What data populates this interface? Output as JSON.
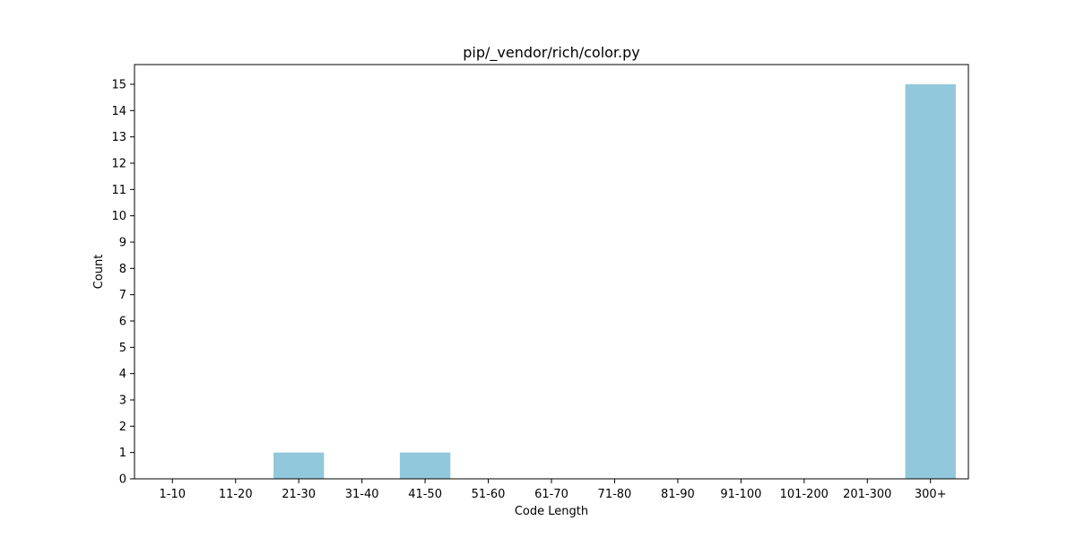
{
  "chart_data": {
    "type": "bar",
    "title": "pip/_vendor/rich/color.py",
    "xlabel": "Code Length",
    "ylabel": "Count",
    "categories": [
      "1-10",
      "11-20",
      "21-30",
      "31-40",
      "41-50",
      "51-60",
      "61-70",
      "71-80",
      "81-90",
      "91-100",
      "101-200",
      "201-300",
      "300+"
    ],
    "values": [
      0,
      0,
      1,
      0,
      1,
      0,
      0,
      0,
      0,
      0,
      0,
      0,
      15
    ],
    "ylim": [
      0,
      15.75
    ],
    "yticks": [
      0,
      1,
      2,
      3,
      4,
      5,
      6,
      7,
      8,
      9,
      10,
      11,
      12,
      13,
      14,
      15
    ],
    "grid": false,
    "bar_color": "#92c8dc",
    "axis_color": "#000000"
  }
}
